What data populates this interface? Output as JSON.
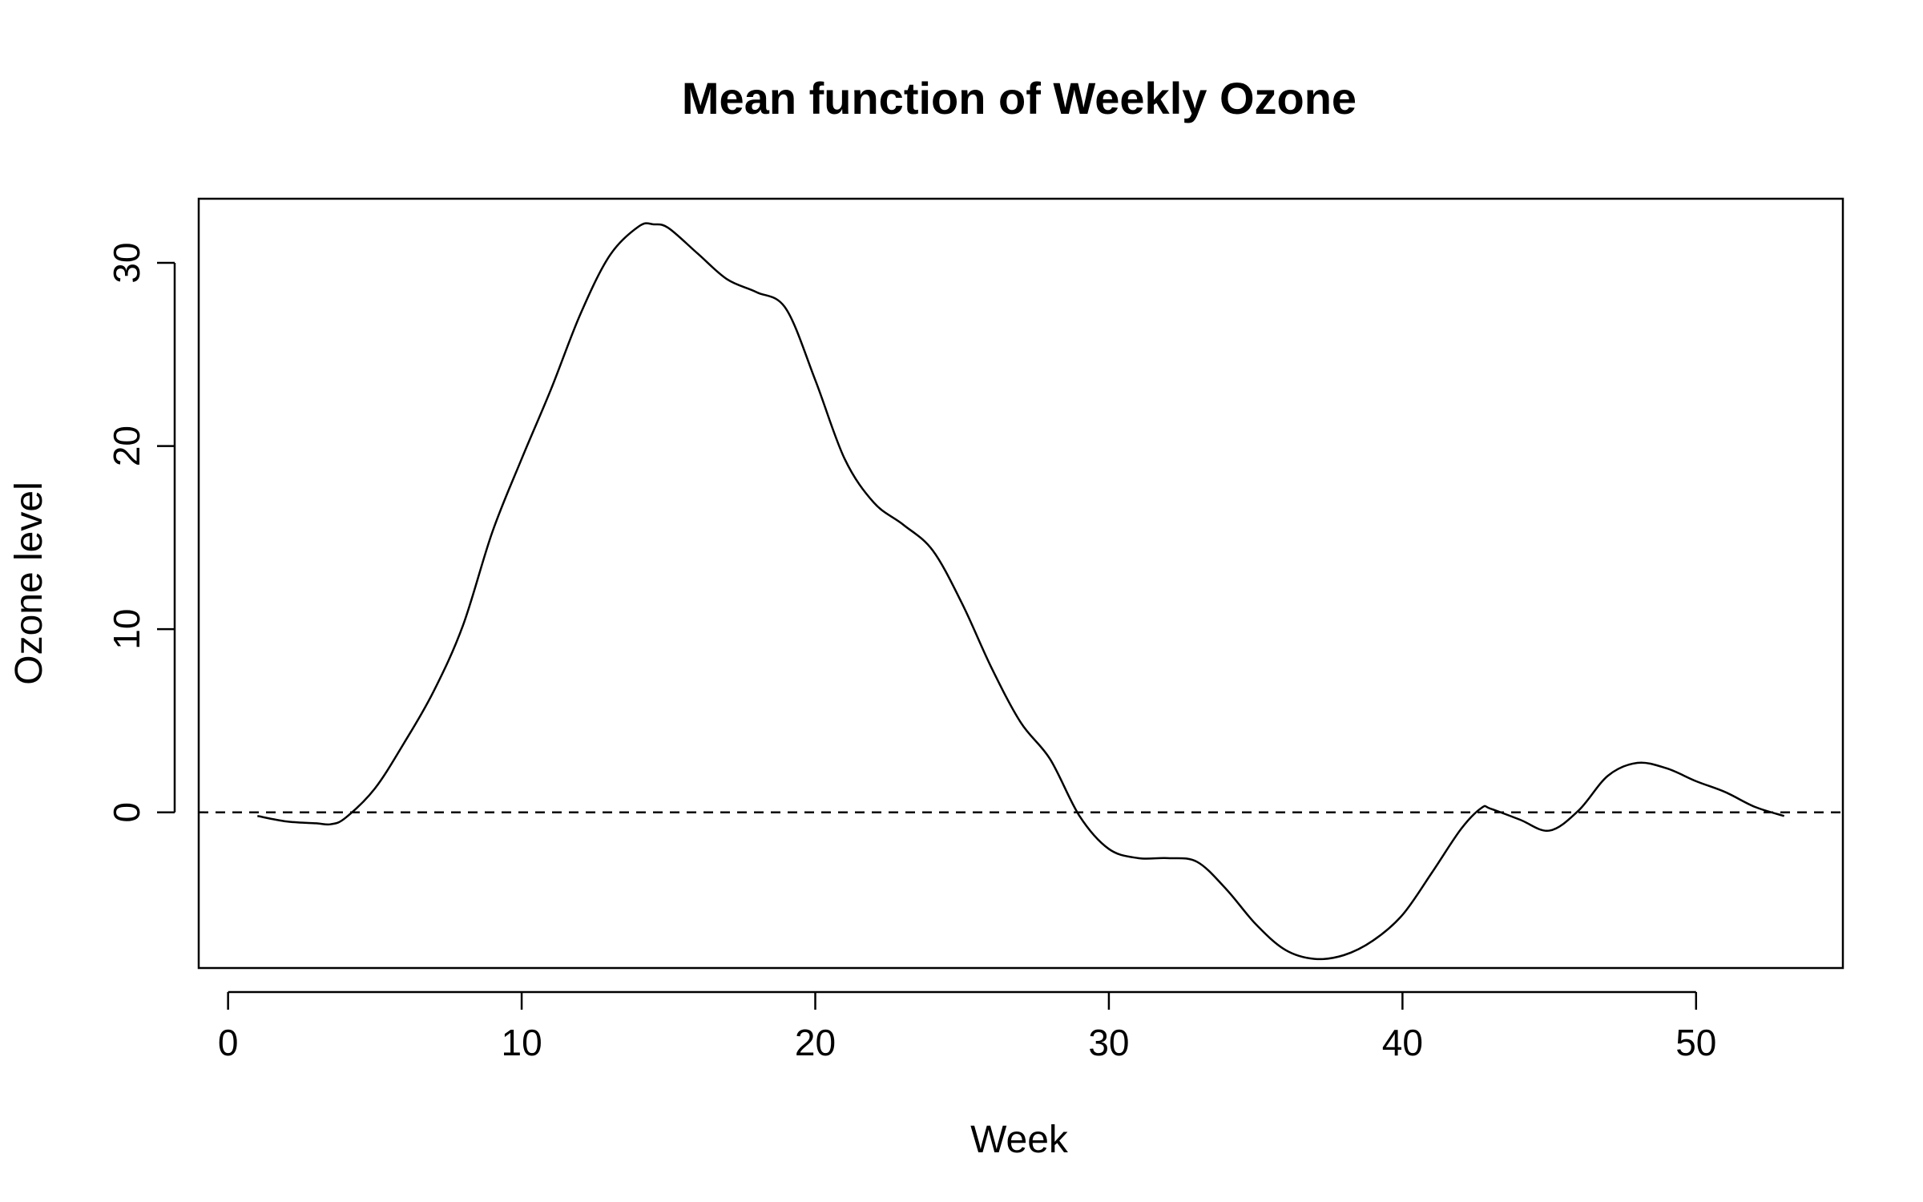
{
  "chart_data": {
    "type": "line",
    "title": "Mean function of Weekly Ozone",
    "xlabel": "Week",
    "ylabel": "Ozone level",
    "xlim": [
      -1,
      55
    ],
    "ylim": [
      -8.5,
      33.5
    ],
    "x_ticks": [
      0,
      10,
      20,
      30,
      40,
      50
    ],
    "y_ticks": [
      0,
      10,
      20,
      30
    ],
    "grid": false,
    "legend": "none",
    "reference_line": {
      "y": 0,
      "style": "dashed"
    },
    "series": [
      {
        "color": "#000000",
        "points": [
          [
            1,
            -0.2
          ],
          [
            2,
            -0.5
          ],
          [
            3,
            -0.6
          ],
          [
            3.5,
            -0.65
          ],
          [
            4,
            -0.3
          ],
          [
            5,
            1.3
          ],
          [
            6,
            3.8
          ],
          [
            7,
            6.6
          ],
          [
            8,
            10.2
          ],
          [
            9,
            15.3
          ],
          [
            10,
            19.3
          ],
          [
            11,
            23.1
          ],
          [
            12,
            27.2
          ],
          [
            13,
            30.4
          ],
          [
            14,
            32.0
          ],
          [
            14.5,
            32.1
          ],
          [
            15,
            31.9
          ],
          [
            16,
            30.5
          ],
          [
            17,
            29.1
          ],
          [
            18,
            28.4
          ],
          [
            19,
            27.5
          ],
          [
            20,
            23.6
          ],
          [
            21,
            19.3
          ],
          [
            22,
            16.9
          ],
          [
            23,
            15.7
          ],
          [
            24,
            14.3
          ],
          [
            25,
            11.4
          ],
          [
            26,
            7.9
          ],
          [
            27,
            4.9
          ],
          [
            28,
            2.9
          ],
          [
            29,
            -0.2
          ],
          [
            30,
            -2.0
          ],
          [
            31,
            -2.5
          ],
          [
            32,
            -2.5
          ],
          [
            33,
            -2.7
          ],
          [
            34,
            -4.2
          ],
          [
            35,
            -6.1
          ],
          [
            36,
            -7.5
          ],
          [
            37,
            -8.0
          ],
          [
            38,
            -7.8
          ],
          [
            39,
            -7.0
          ],
          [
            40,
            -5.6
          ],
          [
            41,
            -3.3
          ],
          [
            42,
            -0.9
          ],
          [
            42.7,
            0.25
          ],
          [
            43,
            0.2
          ],
          [
            44,
            -0.4
          ],
          [
            45,
            -1.0
          ],
          [
            46,
            0.1
          ],
          [
            47,
            2.0
          ],
          [
            48,
            2.7
          ],
          [
            49,
            2.4
          ],
          [
            50,
            1.7
          ],
          [
            51,
            1.1
          ],
          [
            52,
            0.3
          ],
          [
            53,
            -0.2
          ]
        ]
      }
    ]
  }
}
